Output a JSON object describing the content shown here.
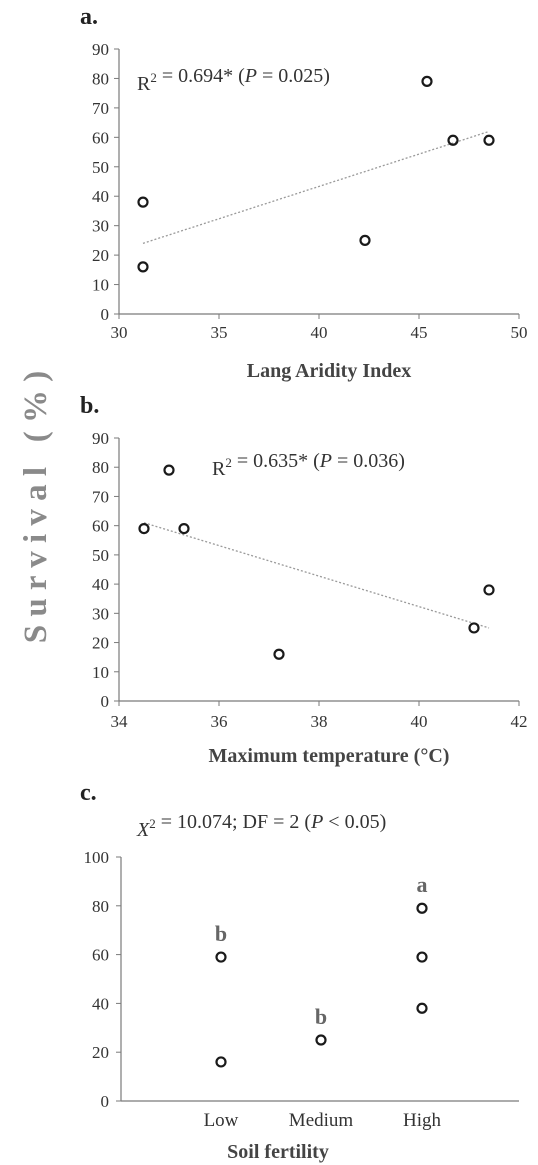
{
  "figure": {
    "shared_ylabel": "S u r v i v a l   ( % )",
    "colors": {
      "axis": "#7a7a7a",
      "text": "#333333",
      "marker": "#1a1a1a",
      "trend": "#9a9a9a",
      "ylabel": "#8a8a8a"
    }
  },
  "chart_data": [
    {
      "panel_label": "a.",
      "type": "scatter",
      "xlabel": "Lang Aridity Index",
      "ylabel": "Survival (%)",
      "xlim": [
        30,
        50
      ],
      "ylim": [
        0,
        90
      ],
      "xticks": [
        "30",
        "35",
        "40",
        "45",
        "50"
      ],
      "yticks": [
        "0",
        "10",
        "20",
        "30",
        "40",
        "50",
        "60",
        "70",
        "80",
        "90"
      ],
      "annotation": "R² = 0.694* (P = 0.025)",
      "points": [
        [
          31.2,
          38
        ],
        [
          31.2,
          16
        ],
        [
          42.3,
          25
        ],
        [
          45.4,
          79
        ],
        [
          46.7,
          59
        ],
        [
          48.5,
          59
        ]
      ],
      "trendline": [
        [
          31.2,
          24
        ],
        [
          48.5,
          62
        ]
      ]
    },
    {
      "panel_label": "b.",
      "type": "scatter",
      "xlabel": "Maximum temperature (°C)",
      "ylabel": "Survival (%)",
      "xlim": [
        34,
        42
      ],
      "ylim": [
        0,
        90
      ],
      "xticks": [
        "34",
        "36",
        "38",
        "40",
        "42"
      ],
      "yticks": [
        "0",
        "10",
        "20",
        "30",
        "40",
        "50",
        "60",
        "70",
        "80",
        "90"
      ],
      "annotation": "R² = 0.635* (P = 0.036)",
      "points": [
        [
          34.5,
          59
        ],
        [
          35.0,
          79
        ],
        [
          35.3,
          59
        ],
        [
          37.2,
          16
        ],
        [
          41.1,
          25
        ],
        [
          41.4,
          38
        ]
      ],
      "trendline": [
        [
          34.5,
          61
        ],
        [
          41.4,
          25
        ]
      ]
    },
    {
      "panel_label": "c.",
      "type": "scatter",
      "xlabel": "Soil fertility",
      "ylabel": "Survival (%)",
      "categories": [
        "Low",
        "Medium",
        "High"
      ],
      "ylim": [
        0,
        100
      ],
      "yticks": [
        "0",
        "20",
        "40",
        "60",
        "80",
        "100"
      ],
      "annotation": "X² = 10.074; DF = 2 (P < 0.05)",
      "points": [
        [
          "Low",
          59
        ],
        [
          "Low",
          16
        ],
        [
          "Medium",
          25
        ],
        [
          "High",
          79
        ],
        [
          "High",
          59
        ],
        [
          "High",
          38
        ]
      ],
      "group_letters": [
        [
          "Low",
          "b"
        ],
        [
          "Medium",
          "b"
        ],
        [
          "High",
          "a"
        ]
      ]
    }
  ]
}
